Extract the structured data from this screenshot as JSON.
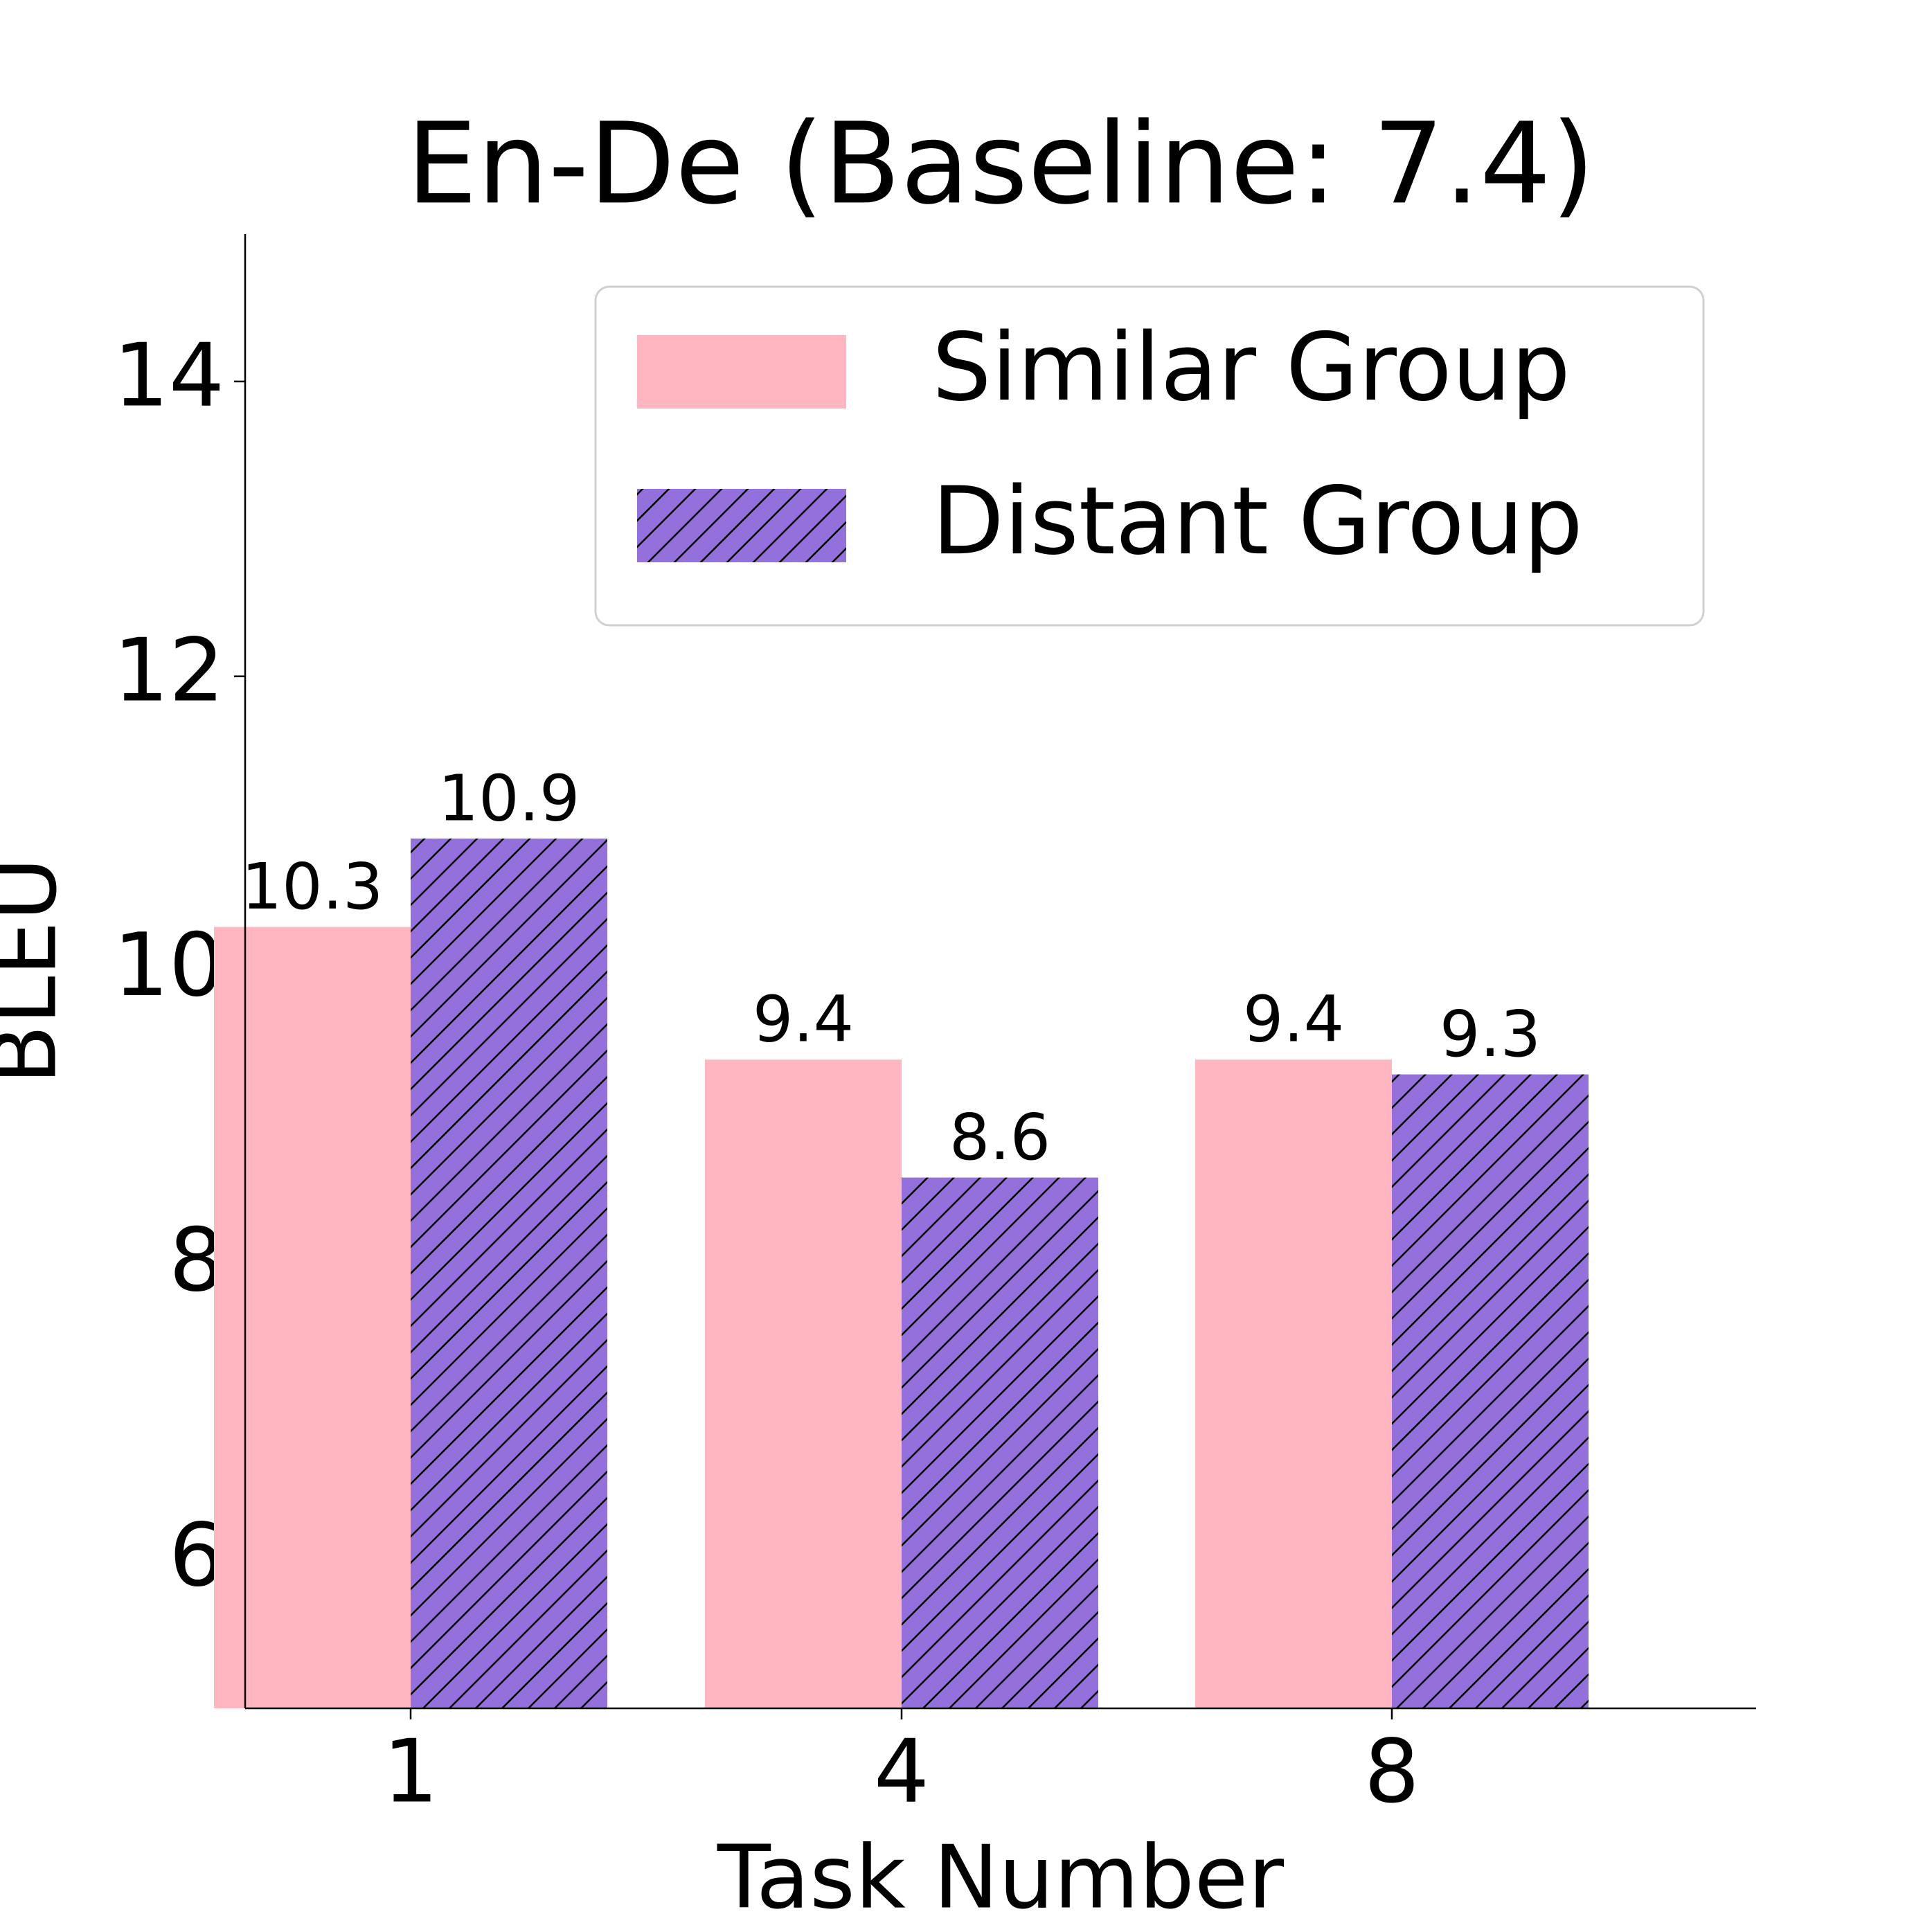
{
  "chart_data": {
    "type": "bar",
    "title": "En-De (Baseline: 7.4)",
    "x_label": "Task Number",
    "y_label": "BLEU",
    "categories": [
      "1",
      "4",
      "8"
    ],
    "series": [
      {
        "name": "Similar Group",
        "color": "#ffb6c1",
        "hatch": false,
        "values": [
          10.3,
          9.4,
          9.4
        ]
      },
      {
        "name": "Distant Group",
        "color": "#9370db",
        "hatch": true,
        "values": [
          10.9,
          8.6,
          9.3
        ]
      }
    ],
    "ylim": [
      5,
      15
    ],
    "yticks": [
      6,
      8,
      10,
      12,
      14
    ],
    "grid": false,
    "legend": "upper right",
    "value_labels_shown": true
  }
}
